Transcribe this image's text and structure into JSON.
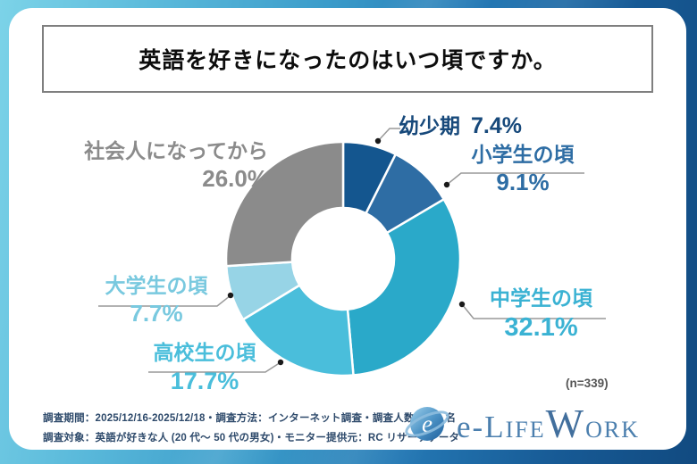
{
  "title": "英語を好きになったのはいつ頃ですか。",
  "sample_size_label": "(n=339)",
  "footer": {
    "line1": "調査期間：2025/12/16-2025/12/18・調査方法：インターネット調査・調査人数：339 名",
    "line2": "調査対象：英語が好きな人 (20 代～ 50 代の男女)・モニター提供元：RC リサーチデータ"
  },
  "logo": {
    "globe_letter": "e",
    "p1": "e-",
    "p2": "L",
    "p3": "IFE",
    "p4": "W",
    "p5": "ORK",
    "color": "#4b7fae"
  },
  "colors": {
    "frame_gradient_start": "#7cd3e8",
    "frame_gradient_end": "#114a80",
    "card_bg": "#ffffff",
    "title_border": "#7f7f7f",
    "footer_text": "#2e4a6b",
    "leader_line": "#999999",
    "leader_dot": "#1a1a1a"
  },
  "chart_data": {
    "type": "pie",
    "subtype": "donut",
    "title": "英語を好きになったのはいつ頃ですか。",
    "n": 339,
    "start_angle_deg": 0,
    "direction": "clockwise",
    "inner_radius_ratio": 0.43,
    "gap_stroke": "#ffffff",
    "segments": [
      {
        "label": "幼少期",
        "value": 7.4,
        "pct": "7.4%",
        "color": "#14568f",
        "label_color": "#17497b"
      },
      {
        "label": "小学生の頃",
        "value": 9.1,
        "pct": "9.1%",
        "color": "#2e6da4",
        "label_color": "#2e6da4"
      },
      {
        "label": "中学生の頃",
        "value": 32.1,
        "pct": "32.1%",
        "color": "#2aa9c9",
        "label_color": "#3ab2d3"
      },
      {
        "label": "高校生の頃",
        "value": 17.7,
        "pct": "17.7%",
        "color": "#4abedb",
        "label_color": "#4abedb"
      },
      {
        "label": "大学生の頃",
        "value": 7.7,
        "pct": "7.7%",
        "color": "#97d4e6",
        "label_color": "#79c9df"
      },
      {
        "label": "社会人になってから",
        "value": 26.0,
        "pct": "26.0%",
        "color": "#8b8b8b",
        "label_color": "#8b8b8b"
      }
    ]
  }
}
